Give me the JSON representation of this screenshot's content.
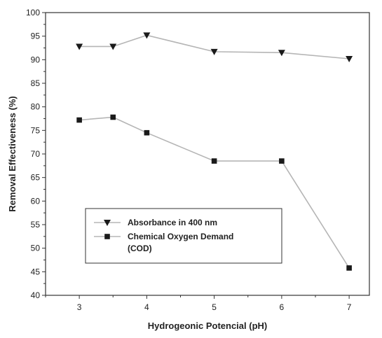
{
  "chart_data": {
    "type": "line",
    "title": "",
    "xlabel": "Hydrogeonic Potencial (pH)",
    "ylabel": "Removal Effectiveness (%)",
    "xlim": [
      2.5,
      7.3
    ],
    "ylim": [
      40,
      100
    ],
    "xticks": [
      3,
      4,
      5,
      6,
      7
    ],
    "yticks": [
      40,
      45,
      50,
      55,
      60,
      65,
      70,
      75,
      80,
      85,
      90,
      95,
      100
    ],
    "grid": false,
    "legend_position": "lower-left",
    "series": [
      {
        "name": "Absorbance in 400 nm",
        "marker": "triangle-down",
        "color": "#1a1a1a",
        "line_color": "#b5b5b5",
        "x": [
          3,
          3.5,
          4,
          5,
          6,
          7
        ],
        "values": [
          92.8,
          92.8,
          95.2,
          91.7,
          91.5,
          90.2
        ]
      },
      {
        "name": "Chemical Oxygen Demand (COD)",
        "legend_lines": [
          "Chemical Oxygen Demand",
          "(COD)"
        ],
        "marker": "square",
        "color": "#1a1a1a",
        "line_color": "#b5b5b5",
        "x": [
          3,
          3.5,
          4,
          5,
          6,
          7
        ],
        "values": [
          77.2,
          77.8,
          74.5,
          68.5,
          68.5,
          45.8
        ]
      }
    ]
  }
}
